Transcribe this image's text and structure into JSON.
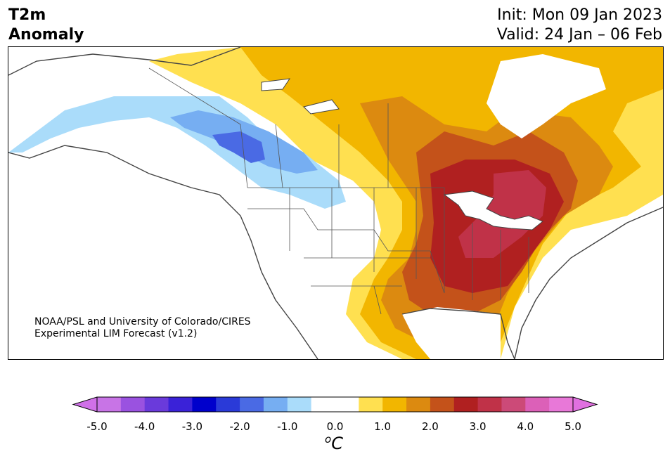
{
  "header": {
    "title_line1": "T2m",
    "title_line2": "Anomaly",
    "init": "Init: Mon 09 Jan 2023",
    "valid": "Valid: 24 Jan – 06 Feb"
  },
  "credit": {
    "line1": "NOAA/PSL and University of Colorado/CIRES",
    "line2": "Experimental LIM Forecast (v1.2)"
  },
  "colorbar": {
    "unit_sup": "o",
    "unit": "C",
    "ticks": [
      "-5.0",
      "-4.0",
      "-3.0",
      "-2.0",
      "-1.0",
      "0.0",
      "1.0",
      "2.0",
      "3.0",
      "4.0",
      "5.0"
    ],
    "colors": [
      "#c874e6",
      "#9a52e0",
      "#6a3adb",
      "#3a22d8",
      "#0000cc",
      "#2a3ad8",
      "#4a6ae4",
      "#76aef2",
      "#aadcfa",
      "#ffffff",
      "#ffffff",
      "#ffe050",
      "#f2b600",
      "#dc8a10",
      "#c4521a",
      "#b02020",
      "#c03248",
      "#cc4a78",
      "#dc60b8",
      "#e878d8"
    ],
    "under_color": "#d070e8",
    "over_color": "#e070e0"
  },
  "map": {
    "colors": {
      "ocean": "#ffffff",
      "neutral": "#ffffff",
      "light_blue": "#aadcfa",
      "mid_blue": "#76aef2",
      "blue": "#4a6ae4",
      "yellow": "#ffe050",
      "gold": "#f2b600",
      "orange": "#dc8a10",
      "rust": "#c4521a",
      "red": "#b02020",
      "crimson": "#c03248"
    }
  }
}
